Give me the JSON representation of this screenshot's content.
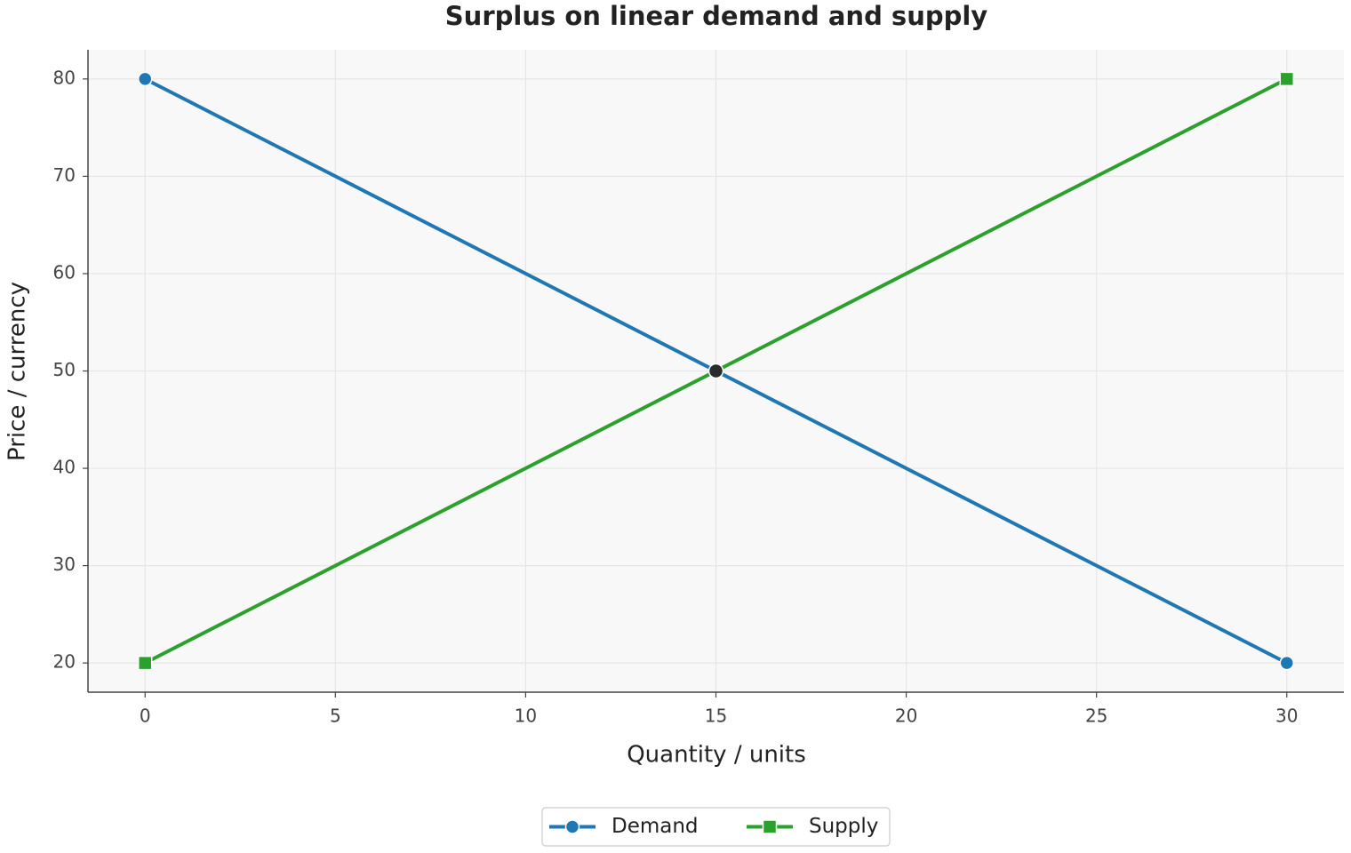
{
  "chart_data": {
    "type": "line",
    "title": "Surplus on linear demand and supply",
    "x_label": "Quantity / units",
    "y_label": "Price / currency",
    "x": [
      0,
      30
    ],
    "series": [
      {
        "name": "Demand",
        "color": "#1f77b4",
        "marker": "circle",
        "values": [
          80,
          20
        ]
      },
      {
        "name": "Supply",
        "color": "#2ca02c",
        "marker": "square",
        "values": [
          20,
          80
        ]
      }
    ],
    "points": [
      {
        "x": 15,
        "y": 50,
        "color": "#2b2b2b"
      }
    ],
    "xlim": [
      -1.5,
      31.5
    ],
    "xticks": [
      0,
      5,
      10,
      15,
      20,
      25,
      30
    ],
    "ylim": [
      17,
      83
    ],
    "yticks": [
      20,
      30,
      40,
      50,
      60,
      70,
      80
    ],
    "grid": true,
    "legend": "bottom"
  }
}
